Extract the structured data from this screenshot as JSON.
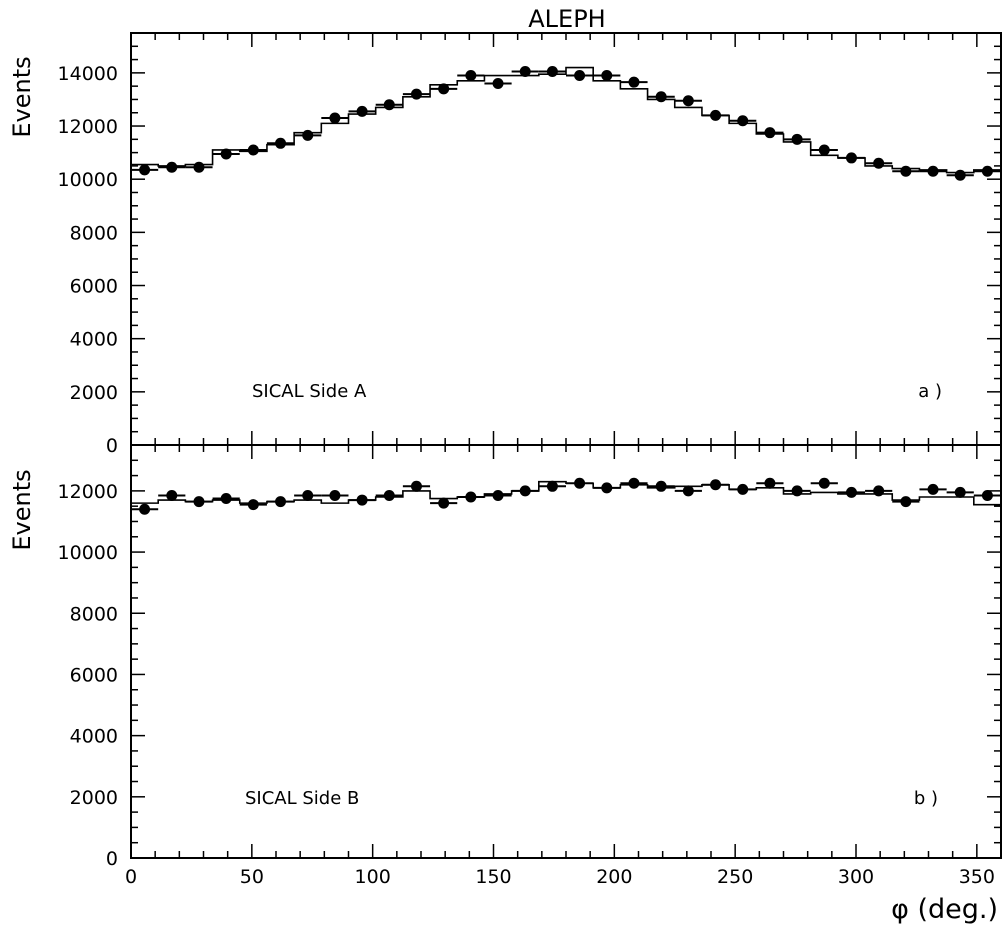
{
  "title": "ALEPH",
  "xlabel": "φ (deg.)",
  "chart_data": [
    {
      "type": "scatter",
      "panel_id": "a",
      "title": "ALEPH",
      "xlabel": "φ (deg.)",
      "ylabel": "Events",
      "annotation": "SICAL Side A",
      "panel_label": "a )",
      "xlim": [
        0,
        360
      ],
      "ylim": [
        0,
        15500
      ],
      "x_ticks": [
        0,
        50,
        100,
        150,
        200,
        250,
        300,
        350
      ],
      "y_ticks": [
        0,
        2000,
        4000,
        6000,
        8000,
        10000,
        12000,
        14000
      ],
      "grid": false,
      "bin_width": 11.25,
      "series": [
        {
          "style": "points",
          "x": [
            5.625,
            16.875,
            28.125,
            39.375,
            50.625,
            61.875,
            73.125,
            84.375,
            95.625,
            106.875,
            118.125,
            129.375,
            140.625,
            151.875,
            163.125,
            174.375,
            185.625,
            196.875,
            208.125,
            219.375,
            230.625,
            241.875,
            253.125,
            264.375,
            275.625,
            286.875,
            298.125,
            309.375,
            320.625,
            331.875,
            343.125,
            354.375
          ],
          "values": [
            10350,
            10450,
            10450,
            10950,
            11100,
            11350,
            11650,
            12300,
            12550,
            12800,
            13200,
            13400,
            13900,
            13600,
            14050,
            14050,
            13900,
            13900,
            13650,
            13100,
            12950,
            12400,
            12200,
            11750,
            11500,
            11100,
            10800,
            10600,
            10300,
            10300,
            10150,
            10300
          ]
        },
        {
          "style": "histogram",
          "bin_edges": [
            0,
            11.25,
            22.5,
            33.75,
            45,
            56.25,
            67.5,
            78.75,
            90,
            101.25,
            112.5,
            123.75,
            135,
            146.25,
            157.5,
            168.75,
            180,
            191.25,
            202.5,
            213.75,
            225,
            236.25,
            247.5,
            258.75,
            270,
            281.25,
            292.5,
            303.75,
            315,
            326.25,
            337.5,
            348.75,
            360
          ],
          "values": [
            10550,
            10500,
            10550,
            11100,
            11050,
            11300,
            11750,
            12100,
            12450,
            12700,
            13100,
            13550,
            13700,
            13900,
            13900,
            13950,
            14200,
            13700,
            13400,
            13000,
            12700,
            12400,
            12100,
            11700,
            11400,
            10900,
            10800,
            10500,
            10400,
            10350,
            10250,
            10350
          ]
        }
      ]
    },
    {
      "type": "scatter",
      "panel_id": "b",
      "xlabel": "φ (deg.)",
      "ylabel": "Events",
      "annotation": "SICAL Side B",
      "panel_label": "b )",
      "xlim": [
        0,
        360
      ],
      "ylim": [
        0,
        13500
      ],
      "x_ticks": [
        0,
        50,
        100,
        150,
        200,
        250,
        300,
        350
      ],
      "y_ticks": [
        0,
        2000,
        4000,
        6000,
        8000,
        10000,
        12000
      ],
      "grid": false,
      "bin_width": 11.25,
      "series": [
        {
          "style": "points",
          "x": [
            5.625,
            16.875,
            28.125,
            39.375,
            50.625,
            61.875,
            73.125,
            84.375,
            95.625,
            106.875,
            118.125,
            129.375,
            140.625,
            151.875,
            163.125,
            174.375,
            185.625,
            196.875,
            208.125,
            219.375,
            230.625,
            241.875,
            253.125,
            264.375,
            275.625,
            286.875,
            298.125,
            309.375,
            320.625,
            331.875,
            343.125,
            354.375
          ],
          "values": [
            11400,
            11850,
            11650,
            11750,
            11550,
            11650,
            11850,
            11850,
            11700,
            11850,
            12150,
            11600,
            11800,
            11850,
            12000,
            12150,
            12250,
            12100,
            12250,
            12150,
            12000,
            12200,
            12050,
            12250,
            12000,
            12250,
            11950,
            12000,
            11650,
            12050,
            11950,
            11850
          ]
        },
        {
          "style": "histogram",
          "bin_edges": [
            0,
            11.25,
            22.5,
            33.75,
            45,
            56.25,
            67.5,
            78.75,
            90,
            101.25,
            112.5,
            123.75,
            135,
            146.25,
            157.5,
            168.75,
            180,
            191.25,
            202.5,
            213.75,
            225,
            236.25,
            247.5,
            258.75,
            270,
            281.25,
            292.5,
            303.75,
            315,
            326.25,
            337.5,
            348.75,
            360
          ],
          "values": [
            11600,
            11700,
            11650,
            11700,
            11600,
            11650,
            11700,
            11600,
            11700,
            11800,
            12000,
            11750,
            11800,
            11900,
            12000,
            12300,
            12250,
            12100,
            12200,
            12100,
            12150,
            12200,
            12050,
            12100,
            11900,
            11950,
            11900,
            11900,
            11700,
            11800,
            11800,
            11550
          ]
        }
      ]
    }
  ]
}
